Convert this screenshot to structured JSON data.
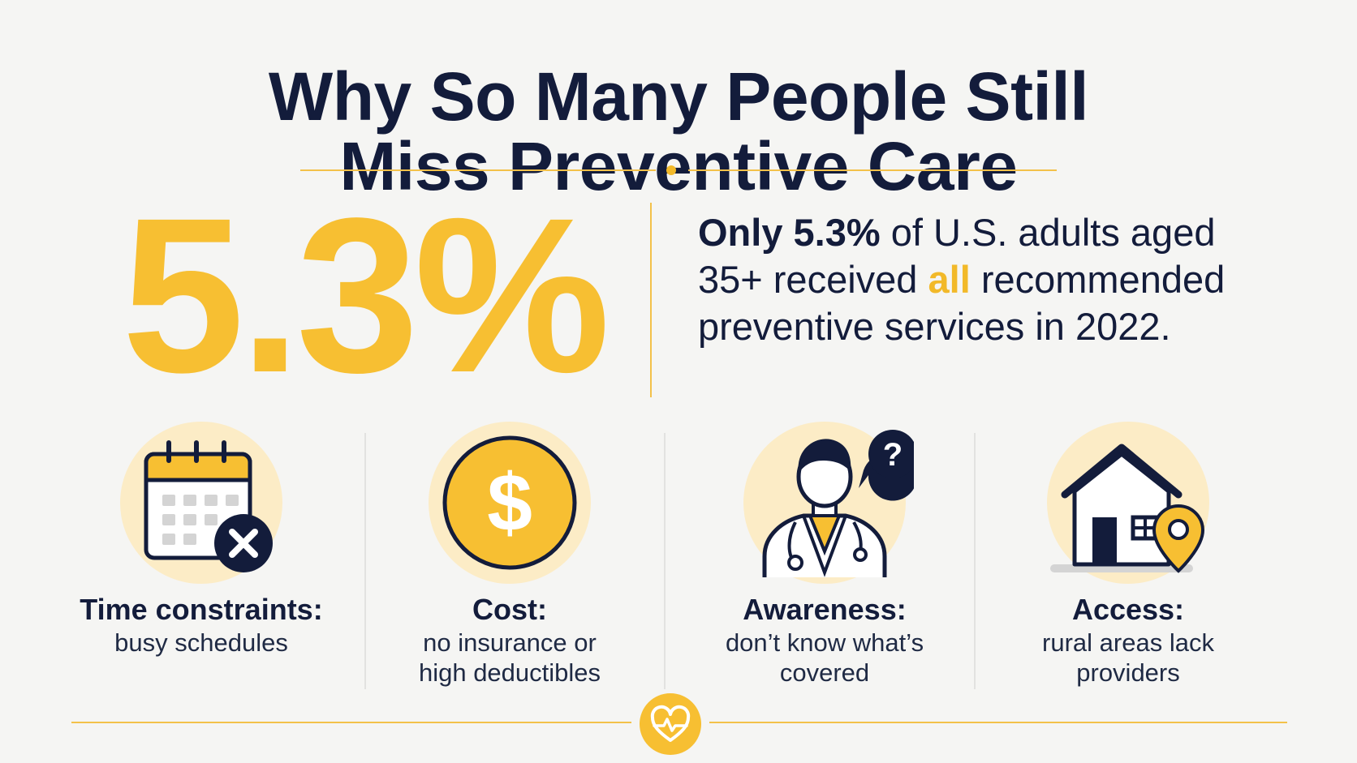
{
  "title": {
    "line1": "Why So Many People Still",
    "line2": "Miss Preventive Care"
  },
  "stat": {
    "value": "5.3%",
    "text_bold": "Only 5.3%",
    "text_part1": " of U.S. adults aged 35+ received ",
    "text_highlight": "all",
    "text_part2": " recommended preventive services in 2022."
  },
  "barriers": [
    {
      "title": "Time constraints:",
      "desc_line1": "busy schedules",
      "desc_line2": "",
      "icon": "calendar-x-icon"
    },
    {
      "title": "Cost:",
      "desc_line1": "no insurance or",
      "desc_line2": "high deductibles",
      "icon": "dollar-coin-icon"
    },
    {
      "title": "Awareness:",
      "desc_line1": "don’t know what’s",
      "desc_line2": "covered",
      "icon": "doctor-question-icon"
    },
    {
      "title": "Access:",
      "desc_line1": "rural areas lack",
      "desc_line2": "providers",
      "icon": "house-location-icon"
    }
  ],
  "colors": {
    "accent": "#f7bf32",
    "navy": "#131c3b",
    "circle": "#fcecc6",
    "background": "#f5f5f3"
  },
  "footer_icon": "heart-pulse-icon"
}
